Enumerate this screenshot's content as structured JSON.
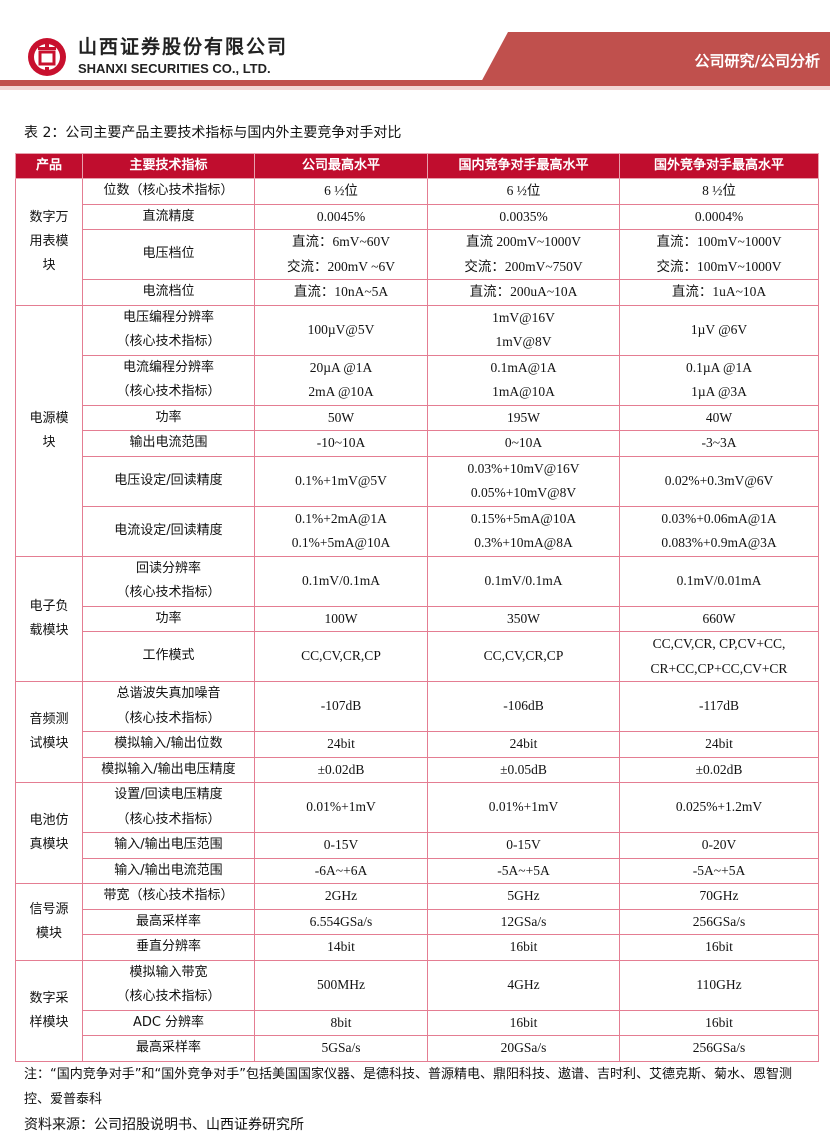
{
  "header": {
    "company_cn": "山西证券股份有限公司",
    "company_en": "SHANXI SECURITIES CO., LTD.",
    "section": "公司研究/公司分析",
    "brand_color": "#c0504d"
  },
  "caption": "表 2：公司主要产品主要技术指标与国内外主要竞争对手对比",
  "table": {
    "headers": [
      "产品",
      "主要技术指标",
      "公司最高水平",
      "国内竞争对手最高水平",
      "国外竞争对手最高水平"
    ],
    "groups": [
      {
        "product": "数字万用表模块",
        "rows": [
          {
            "metric": [
              "位数（核心技术指标）"
            ],
            "company": [
              "6 ½位"
            ],
            "domestic": [
              "6 ½位"
            ],
            "foreign": [
              "8 ½位"
            ]
          },
          {
            "metric": [
              "直流精度"
            ],
            "company": [
              "0.0045%"
            ],
            "domestic": [
              "0.0035%"
            ],
            "foreign": [
              "0.0004%"
            ]
          },
          {
            "metric": [
              "电压档位"
            ],
            "company": [
              "直流：6mV~60V",
              "交流：200mV ~6V"
            ],
            "domestic": [
              "直流  200mV~1000V",
              "交流：200mV~750V"
            ],
            "foreign": [
              "直流：100mV~1000V",
              "交流：100mV~1000V"
            ]
          },
          {
            "metric": [
              "电流档位"
            ],
            "company": [
              "直流：10nA~5A"
            ],
            "domestic": [
              "直流：200uA~10A"
            ],
            "foreign": [
              "直流：1uA~10A"
            ]
          }
        ]
      },
      {
        "product": "电源模块",
        "rows": [
          {
            "metric": [
              "电压编程分辨率",
              "（核心技术指标）"
            ],
            "company": [
              "100µV@5V"
            ],
            "domestic": [
              "1mV@16V",
              "1mV@8V"
            ],
            "foreign": [
              "1µV @6V"
            ]
          },
          {
            "metric": [
              "电流编程分辨率",
              "（核心技术指标）"
            ],
            "company": [
              "20µA @1A",
              "2mA @10A"
            ],
            "domestic": [
              "0.1mA@1A",
              "1mA@10A"
            ],
            "foreign": [
              "0.1µA @1A",
              "1µA @3A"
            ]
          },
          {
            "metric": [
              "功率"
            ],
            "company": [
              "50W"
            ],
            "domestic": [
              "195W"
            ],
            "foreign": [
              "40W"
            ]
          },
          {
            "metric": [
              "输出电流范围"
            ],
            "company": [
              "-10~10A"
            ],
            "domestic": [
              "0~10A"
            ],
            "foreign": [
              "-3~3A"
            ]
          },
          {
            "metric": [
              "电压设定/回读精度"
            ],
            "company": [
              "0.1%+1mV@5V"
            ],
            "domestic": [
              "0.03%+10mV@16V",
              "0.05%+10mV@8V"
            ],
            "foreign": [
              "0.02%+0.3mV@6V"
            ]
          },
          {
            "metric": [
              "电流设定/回读精度"
            ],
            "company": [
              "0.1%+2mA@1A",
              "0.1%+5mA@10A"
            ],
            "domestic": [
              "0.15%+5mA@10A",
              "0.3%+10mA@8A"
            ],
            "foreign": [
              "0.03%+0.06mA@1A",
              "0.083%+0.9mA@3A"
            ]
          }
        ]
      },
      {
        "product": "电子负载模块",
        "rows": [
          {
            "metric": [
              "回读分辨率",
              "（核心技术指标）"
            ],
            "company": [
              "0.1mV/0.1mA"
            ],
            "domestic": [
              "0.1mV/0.1mA"
            ],
            "foreign": [
              "0.1mV/0.01mA"
            ]
          },
          {
            "metric": [
              "功率"
            ],
            "company": [
              "100W"
            ],
            "domestic": [
              "350W"
            ],
            "foreign": [
              "660W"
            ]
          },
          {
            "metric": [
              "工作模式"
            ],
            "company": [
              "CC,CV,CR,CP"
            ],
            "domestic": [
              "CC,CV,CR,CP"
            ],
            "foreign": [
              "CC,CV,CR, CP,CV+CC,",
              "CR+CC,CP+CC,CV+CR"
            ]
          }
        ]
      },
      {
        "product": "音频测试模块",
        "rows": [
          {
            "metric": [
              "总谐波失真加噪音",
              "（核心技术指标）"
            ],
            "company": [
              "-107dB"
            ],
            "domestic": [
              "-106dB"
            ],
            "foreign": [
              "-117dB"
            ]
          },
          {
            "metric": [
              "模拟输入/输出位数"
            ],
            "company": [
              "24bit"
            ],
            "domestic": [
              "24bit"
            ],
            "foreign": [
              "24bit"
            ]
          },
          {
            "metric": [
              "模拟输入/输出电压精度"
            ],
            "company": [
              "±0.02dB"
            ],
            "domestic": [
              "±0.05dB"
            ],
            "foreign": [
              "±0.02dB"
            ]
          }
        ]
      },
      {
        "product": "电池仿真模块",
        "rows": [
          {
            "metric": [
              "设置/回读电压精度",
              "（核心技术指标）"
            ],
            "company": [
              "0.01%+1mV"
            ],
            "domestic": [
              "0.01%+1mV"
            ],
            "foreign": [
              "0.025%+1.2mV"
            ]
          },
          {
            "metric": [
              "输入/输出电压范围"
            ],
            "company": [
              "0-15V"
            ],
            "domestic": [
              "0-15V"
            ],
            "foreign": [
              "0-20V"
            ]
          },
          {
            "metric": [
              "输入/输出电流范围"
            ],
            "company": [
              "-6A~+6A"
            ],
            "domestic": [
              "-5A~+5A"
            ],
            "foreign": [
              "-5A~+5A"
            ]
          }
        ]
      },
      {
        "product": "信号源模块",
        "rows": [
          {
            "metric": [
              "带宽（核心技术指标）"
            ],
            "company": [
              "2GHz"
            ],
            "domestic": [
              "5GHz"
            ],
            "foreign": [
              "70GHz"
            ]
          },
          {
            "metric": [
              "最高采样率"
            ],
            "company": [
              "6.554GSa/s"
            ],
            "domestic": [
              "12GSa/s"
            ],
            "foreign": [
              "256GSa/s"
            ]
          },
          {
            "metric": [
              "垂直分辨率"
            ],
            "company": [
              "14bit"
            ],
            "domestic": [
              "16bit"
            ],
            "foreign": [
              "16bit"
            ]
          }
        ]
      },
      {
        "product": "数字采样模块",
        "rows": [
          {
            "metric": [
              "模拟输入带宽",
              "（核心技术指标）"
            ],
            "company": [
              "500MHz"
            ],
            "domestic": [
              "4GHz"
            ],
            "foreign": [
              "110GHz"
            ]
          },
          {
            "metric": [
              "ADC 分辨率"
            ],
            "company": [
              "8bit"
            ],
            "domestic": [
              "16bit"
            ],
            "foreign": [
              "16bit"
            ]
          },
          {
            "metric": [
              "最高采样率"
            ],
            "company": [
              "5GSa/s"
            ],
            "domestic": [
              "20GSa/s"
            ],
            "foreign": [
              "256GSa/s"
            ]
          }
        ]
      }
    ]
  },
  "note": "注：“国内竞争对手”和“国外竞争对手”包括美国国家仪器、是德科技、普源精电、鼎阳科技、遨谱、吉时利、艾德克斯、菊水、恩智测控、爱普泰科",
  "source": "资料来源：公司招股说明书、山西证券研究所"
}
